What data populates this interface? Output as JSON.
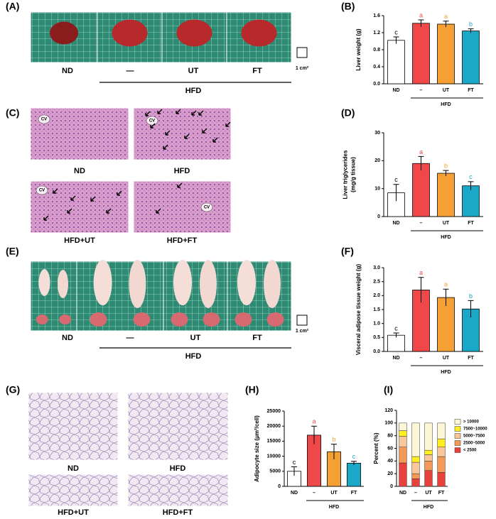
{
  "photo_panels": [
    {
      "label": "(A)",
      "captions": [
        "ND",
        "—",
        "UT",
        "FT"
      ],
      "group": "HFD",
      "scale": "1 cm²"
    },
    {
      "label": "(C)",
      "captions": [
        "ND",
        "HFD",
        "HFD+UT",
        "HFD+FT"
      ],
      "marker": "CV"
    },
    {
      "label": "(E)",
      "captions": [
        "ND",
        "—",
        "UT",
        "FT"
      ],
      "group": "HFD",
      "scale": "1 cm²"
    },
    {
      "label": "(G)",
      "captions": [
        "ND",
        "HFD",
        "HFD+UT",
        "HFD+FT"
      ]
    }
  ],
  "chart_data": [
    {
      "type": "bar",
      "label": "(B)",
      "ylabel": [
        "Liver weight (g)"
      ],
      "categories": [
        "ND",
        "–",
        "UT",
        "FT"
      ],
      "group": "HFD",
      "values": [
        1.02,
        1.42,
        1.4,
        1.24
      ],
      "errors": [
        0.08,
        0.08,
        0.07,
        0.05
      ],
      "letters": [
        "c",
        "a",
        "a",
        "b"
      ],
      "colors": [
        "#ffffff",
        "#f04848",
        "#f5a033",
        "#1aa8c8"
      ],
      "ylim": [
        0,
        1.6
      ],
      "yticks": [
        {
          "value": 0,
          "label": "0.0"
        },
        {
          "value": 0.4,
          "label": "0.4"
        },
        {
          "value": 0.8,
          "label": "0.8"
        },
        {
          "value": 1.2,
          "label": "1.2"
        },
        {
          "value": 1.6,
          "label": "1.6"
        }
      ]
    },
    {
      "type": "bar",
      "label": "(D)",
      "ylabel": [
        "Liver triglycerides",
        "(mg/g tissue)"
      ],
      "categories": [
        "ND",
        "–",
        "UT",
        "FT"
      ],
      "group": "HFD",
      "values": [
        8.5,
        19,
        15.5,
        11
      ],
      "errors": [
        3,
        2.5,
        1,
        1.5
      ],
      "letters": [
        "c",
        "a",
        "b",
        "c"
      ],
      "colors": [
        "#ffffff",
        "#f04848",
        "#f5a033",
        "#1aa8c8"
      ],
      "ylim": [
        0,
        30
      ],
      "yticks": [
        0,
        10,
        20,
        30
      ]
    },
    {
      "type": "bar",
      "label": "(F)",
      "ylabel": [
        "Visceral adipose tissue weight (g)"
      ],
      "categories": [
        "ND",
        "–",
        "UT",
        "FT"
      ],
      "group": "HFD",
      "values": [
        0.58,
        2.2,
        1.93,
        1.52
      ],
      "errors": [
        0.08,
        0.45,
        0.3,
        0.3
      ],
      "letters": [
        "c",
        "a",
        "a",
        "b"
      ],
      "colors": [
        "#ffffff",
        "#f04848",
        "#f5a033",
        "#1aa8c8"
      ],
      "ylim": [
        0,
        3
      ],
      "yticks": [
        {
          "value": 0,
          "label": "0.0"
        },
        {
          "value": 0.5,
          "label": "0.5"
        },
        {
          "value": 1,
          "label": "1.0"
        },
        {
          "value": 1.5,
          "label": "1.5"
        },
        {
          "value": 2,
          "label": "2.0"
        },
        {
          "value": 2.5,
          "label": "2.5"
        },
        {
          "value": 3,
          "label": "3.0"
        }
      ]
    },
    {
      "type": "bar",
      "label": "(H)",
      "ylabel": [
        "Adipocyte size (μm²/cell)"
      ],
      "categories": [
        "ND",
        "–",
        "UT",
        "FT"
      ],
      "group": "HFD",
      "values": [
        5000,
        17000,
        11500,
        7700
      ],
      "errors": [
        1500,
        3000,
        2500,
        600
      ],
      "letters": [
        "c",
        "a",
        "b",
        "c"
      ],
      "colors": [
        "#ffffff",
        "#f04848",
        "#f5a033",
        "#1aa8c8"
      ],
      "ylim": [
        0,
        25000
      ],
      "yticks": [
        0,
        5000,
        10000,
        15000,
        20000,
        25000
      ]
    },
    {
      "type": "stacked",
      "label": "(I)",
      "ylabel": [
        "Percent (%)"
      ],
      "categories": [
        "ND",
        "–",
        "UT",
        "FT"
      ],
      "group": "HFD",
      "ylim": [
        0,
        120
      ],
      "yticks": [
        0,
        20,
        40,
        60,
        80,
        100,
        120
      ],
      "series": [
        {
          "name": "< 2500",
          "color": "#e8413c",
          "values": [
            37,
            12,
            25,
            22
          ]
        },
        {
          "name": "2500~5000",
          "color": "#f39a58",
          "values": [
            25,
            8,
            15,
            25
          ]
        },
        {
          "name": "5000~7500",
          "color": "#f8c79a",
          "values": [
            17,
            18,
            10,
            15
          ]
        },
        {
          "name": "7500~10000",
          "color": "#ffee22",
          "values": [
            9,
            9,
            7,
            13
          ]
        },
        {
          "name": "> 10000",
          "color": "#fdf6d6",
          "values": [
            12,
            53,
            43,
            25
          ]
        }
      ]
    }
  ]
}
